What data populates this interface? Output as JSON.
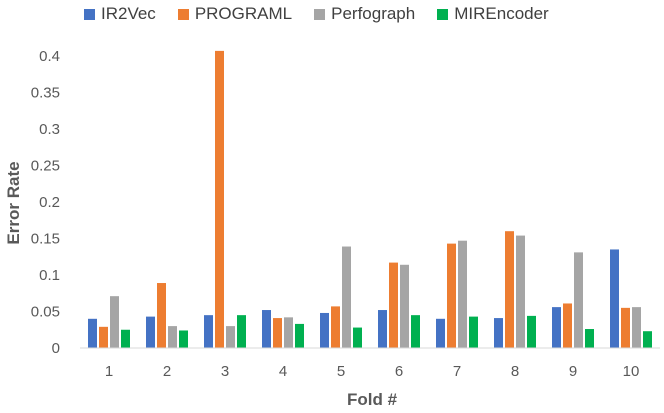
{
  "chart_data": {
    "type": "bar",
    "title": "",
    "xlabel": "Fold #",
    "ylabel": "Error Rate",
    "ylim": [
      0,
      0.4
    ],
    "yticks": [
      0,
      0.05,
      0.1,
      0.15,
      0.2,
      0.25,
      0.3,
      0.35,
      0.4
    ],
    "ytick_labels": [
      "0",
      "0.05",
      "0.1",
      "0.15",
      "0.2",
      "0.25",
      "0.3",
      "0.35",
      "0.4"
    ],
    "categories": [
      "1",
      "2",
      "3",
      "4",
      "5",
      "6",
      "7",
      "8",
      "9",
      "10"
    ],
    "grid": false,
    "legend_position": "top",
    "series": [
      {
        "name": "IR2Vec",
        "color": "#4472C4",
        "values": [
          0.04,
          0.043,
          0.045,
          0.052,
          0.048,
          0.052,
          0.04,
          0.041,
          0.056,
          0.135
        ]
      },
      {
        "name": "PROGRAML",
        "color": "#ED7D31",
        "values": [
          0.029,
          0.089,
          0.407,
          0.041,
          0.057,
          0.117,
          0.143,
          0.16,
          0.061,
          0.055
        ]
      },
      {
        "name": "Perfograph",
        "color": "#A5A5A5",
        "values": [
          0.071,
          0.03,
          0.03,
          0.042,
          0.139,
          0.114,
          0.147,
          0.154,
          0.131,
          0.056
        ]
      },
      {
        "name": "MIREncoder",
        "color": "#00B050",
        "values": [
          0.025,
          0.024,
          0.045,
          0.033,
          0.028,
          0.045,
          0.043,
          0.044,
          0.026,
          0.023
        ]
      }
    ]
  }
}
